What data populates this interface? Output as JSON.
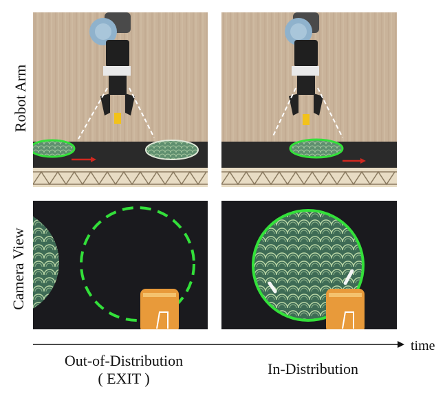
{
  "row_labels": {
    "top": "Robot Arm",
    "bottom": "Camera View"
  },
  "timeline": {
    "label": "time"
  },
  "captions": {
    "left_line1": "Out-of-Distribution",
    "left_line2": "( EXIT )",
    "right": "In-Distribution"
  },
  "colors": {
    "highlight_green": "#33e03a",
    "conveyor_belt": "#2a2a2a",
    "wall": "#c9b39a",
    "plate_green": "#3e6b55",
    "motion_arrow": "#d0281f"
  }
}
